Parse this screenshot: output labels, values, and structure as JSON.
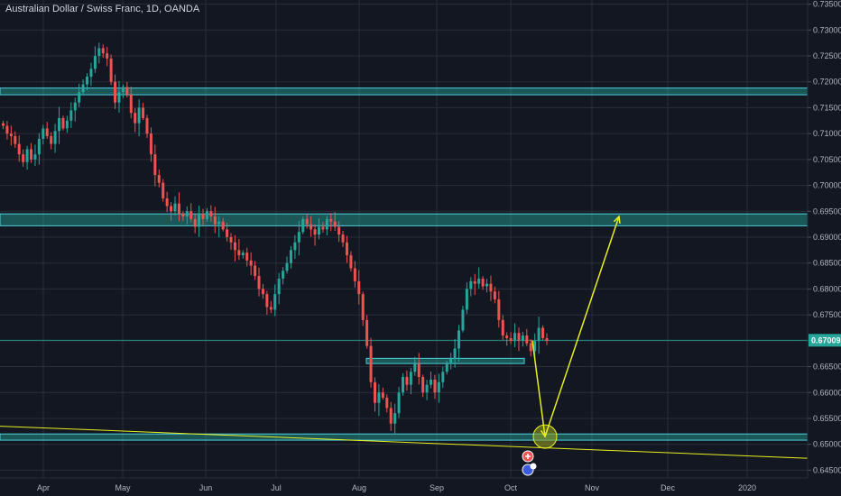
{
  "chart_title": "Australian Dollar / Swiss Franc, 1D, OANDA",
  "colors": {
    "background": "#131722",
    "grid": "#2a2e39",
    "up": "#26a69a",
    "down": "#ef5350",
    "zone_fill": "#26a69a",
    "zone_border": "#4dd0e1",
    "annotation": "#e8f020",
    "last_price": "#26a69a"
  },
  "last_price_label": "0.67009",
  "chart_data": {
    "type": "candlestick",
    "instrument": "Australian Dollar / Swiss Franc",
    "timeframe": "1D",
    "source": "OANDA",
    "x_tick_labels": [
      "Apr",
      "May",
      "Jun",
      "Jul",
      "Aug",
      "Sep",
      "Oct",
      "Nov",
      "Dec",
      "2020"
    ],
    "y_tick_labels": [
      "0.73500",
      "0.73000",
      "0.72500",
      "0.72000",
      "0.71500",
      "0.71000",
      "0.70500",
      "0.70000",
      "0.69500",
      "0.69000",
      "0.68500",
      "0.68000",
      "0.67500",
      "0.67000",
      "0.66500",
      "0.66000",
      "0.65500",
      "0.65000",
      "0.64500"
    ],
    "ylim": [
      0.6435,
      0.7358
    ],
    "last_price": 0.67009,
    "grid": true,
    "close_series": [
      0.7115,
      0.71,
      0.7095,
      0.708,
      0.706,
      0.7045,
      0.707,
      0.705,
      0.706,
      0.709,
      0.711,
      0.7095,
      0.708,
      0.7105,
      0.713,
      0.711,
      0.7125,
      0.7145,
      0.716,
      0.718,
      0.7195,
      0.721,
      0.7225,
      0.725,
      0.7265,
      0.7255,
      0.7245,
      0.72,
      0.716,
      0.718,
      0.719,
      0.7175,
      0.714,
      0.712,
      0.715,
      0.713,
      0.71,
      0.706,
      0.702,
      0.7005,
      0.6975,
      0.696,
      0.695,
      0.6965,
      0.6945,
      0.694,
      0.695,
      0.6935,
      0.692,
      0.6945,
      0.6935,
      0.695,
      0.694,
      0.6925,
      0.693,
      0.6915,
      0.69,
      0.689,
      0.6875,
      0.6865,
      0.687,
      0.6855,
      0.6845,
      0.6825,
      0.68,
      0.679,
      0.6765,
      0.676,
      0.679,
      0.682,
      0.6835,
      0.685,
      0.6875,
      0.689,
      0.691,
      0.6935,
      0.6925,
      0.6915,
      0.6905,
      0.692,
      0.6915,
      0.6935,
      0.693,
      0.692,
      0.6905,
      0.689,
      0.6865,
      0.684,
      0.6815,
      0.679,
      0.674,
      0.669,
      0.662,
      0.658,
      0.66,
      0.659,
      0.657,
      0.654,
      0.656,
      0.66,
      0.663,
      0.6615,
      0.664,
      0.6655,
      0.663,
      0.66,
      0.6615,
      0.6625,
      0.66,
      0.662,
      0.664,
      0.6655,
      0.6665,
      0.6685,
      0.672,
      0.676,
      0.68,
      0.6815,
      0.681,
      0.682,
      0.6805,
      0.681,
      0.6795,
      0.678,
      0.674,
      0.671,
      0.6705,
      0.67,
      0.6715,
      0.67,
      0.671,
      0.6695,
      0.668,
      0.67,
      0.6725,
      0.6705,
      0.67
    ],
    "annotations": [
      {
        "type": "horizontal_zone",
        "from": 0.7175,
        "to": 0.7188
      },
      {
        "type": "horizontal_zone",
        "from": 0.6922,
        "to": 0.6945
      },
      {
        "type": "horizontal_zone",
        "from": 0.6656,
        "to": 0.6666
      },
      {
        "type": "horizontal_zone",
        "from": 0.6508,
        "to": 0.652
      },
      {
        "type": "trendline",
        "from": [
          0,
          0.6535
        ],
        "to": [
          1,
          0.6473
        ]
      },
      {
        "type": "projection_path",
        "points": [
          [
            0.67,
            0
          ],
          [
            0.6515,
            1
          ],
          [
            0.694,
            2
          ]
        ]
      },
      {
        "type": "target_circle",
        "level": 0.6515
      }
    ]
  }
}
